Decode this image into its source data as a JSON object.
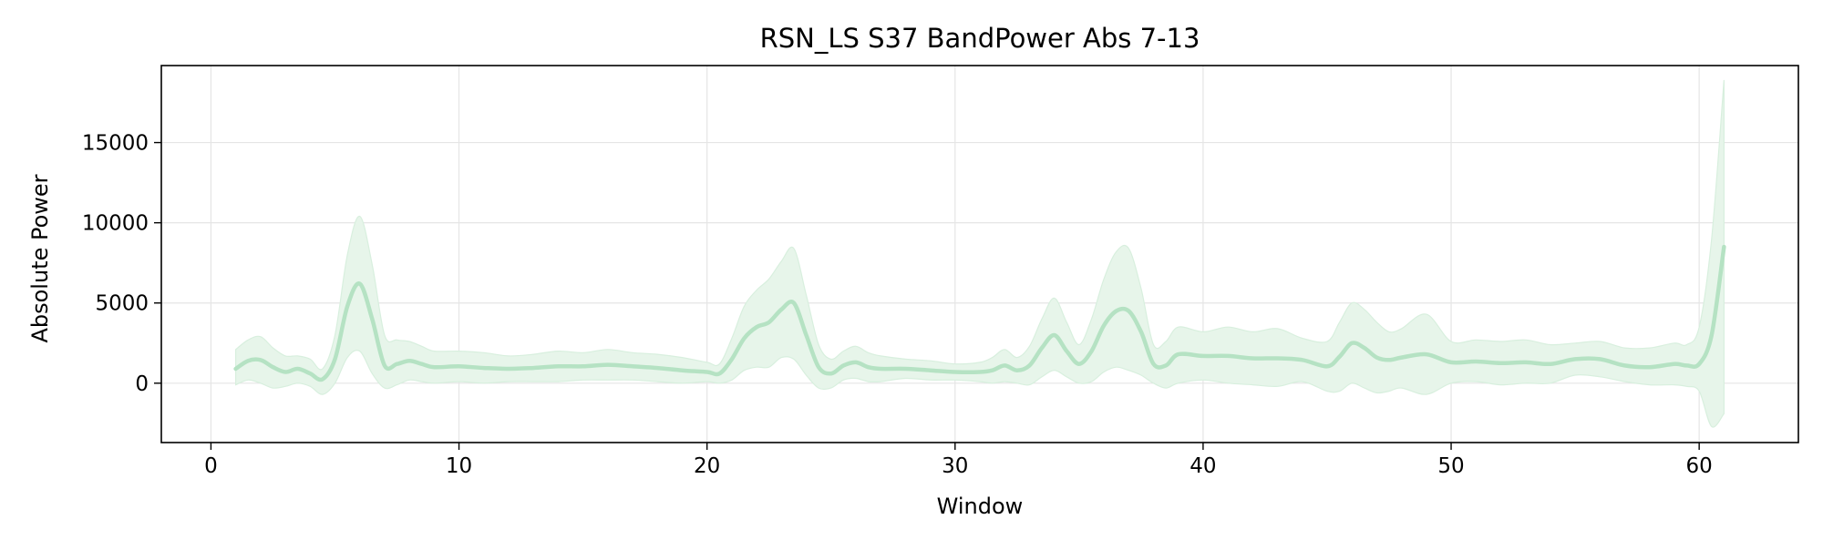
{
  "chart_data": {
    "type": "line",
    "title": "RSN_LS S37 BandPower Abs 7-13",
    "xlabel": "Window",
    "ylabel": "Absolute Power",
    "xlim": [
      -2,
      64
    ],
    "ylim": [
      -3700,
      19800
    ],
    "xticks": [
      0,
      10,
      20,
      30,
      40,
      50,
      60
    ],
    "yticks": [
      0,
      5000,
      10000,
      15000
    ],
    "grid": true,
    "legend": "none",
    "colors": {
      "line": "#b5e2c3",
      "band": "#e7f5ea",
      "band_edge": "#d8efde",
      "grid": "#e5e5e5"
    },
    "series": [
      {
        "x": [
          1,
          1.5,
          2,
          2.5,
          3,
          3.5,
          4,
          4.5,
          5,
          5.5,
          6,
          6.5,
          7,
          7.5,
          8,
          8.5,
          9,
          10,
          11,
          12,
          13,
          14,
          15,
          16,
          17,
          18,
          19,
          20,
          20.5,
          21,
          21.5,
          22,
          22.5,
          23,
          23.5,
          24,
          24.5,
          25,
          25.5,
          26,
          26.5,
          27,
          28,
          29,
          30,
          31,
          31.5,
          32,
          32.5,
          33,
          33.5,
          34,
          34.5,
          35,
          35.5,
          36,
          36.5,
          37,
          37.5,
          38,
          38.5,
          39,
          40,
          41,
          42,
          43,
          44,
          45,
          45.5,
          46,
          46.5,
          47,
          47.5,
          48,
          49,
          50,
          51,
          52,
          53,
          54,
          55,
          56,
          57,
          58,
          59,
          59.5,
          60,
          60.5,
          61
        ],
        "values": [
          900,
          1400,
          1450,
          1000,
          700,
          900,
          600,
          250,
          1500,
          4800,
          6200,
          4000,
          1100,
          1200,
          1400,
          1200,
          1000,
          1050,
          950,
          900,
          950,
          1050,
          1050,
          1150,
          1050,
          950,
          800,
          700,
          600,
          1500,
          2800,
          3500,
          3800,
          4600,
          5000,
          3000,
          1000,
          600,
          1100,
          1300,
          1000,
          900,
          900,
          800,
          700,
          700,
          800,
          1100,
          800,
          1100,
          2200,
          3000,
          2000,
          1200,
          2000,
          3600,
          4500,
          4500,
          3200,
          1200,
          1100,
          1800,
          1700,
          1700,
          1550,
          1550,
          1450,
          1050,
          1650,
          2500,
          2200,
          1600,
          1450,
          1600,
          1800,
          1300,
          1350,
          1250,
          1300,
          1200,
          1500,
          1500,
          1100,
          1000,
          1200,
          1100,
          1200,
          3000,
          8500
        ],
        "upper": [
          2100,
          2700,
          2900,
          2200,
          1700,
          1700,
          1500,
          900,
          3000,
          8000,
          10400,
          7400,
          3000,
          2700,
          2600,
          2300,
          2000,
          2000,
          1900,
          1700,
          1800,
          2000,
          1900,
          2100,
          1900,
          1800,
          1600,
          1300,
          1200,
          2800,
          4800,
          5800,
          6500,
          7600,
          8400,
          5500,
          2400,
          1500,
          2000,
          2300,
          1900,
          1700,
          1500,
          1400,
          1200,
          1300,
          1600,
          2100,
          1600,
          2300,
          4000,
          5300,
          3800,
          2400,
          4000,
          6500,
          8200,
          8400,
          5900,
          2400,
          2600,
          3500,
          3200,
          3500,
          3200,
          3400,
          2800,
          2600,
          3800,
          5000,
          4600,
          3800,
          3200,
          3400,
          4300,
          2600,
          2700,
          2600,
          2700,
          2400,
          2500,
          2600,
          2200,
          2200,
          2500,
          2400,
          3500,
          9000,
          18900
        ],
        "lower": [
          -100,
          200,
          0,
          -300,
          -200,
          0,
          -200,
          -700,
          0,
          1600,
          2000,
          600,
          -300,
          -100,
          200,
          100,
          0,
          100,
          0,
          100,
          100,
          100,
          200,
          200,
          200,
          100,
          0,
          100,
          0,
          200,
          800,
          1000,
          1000,
          1600,
          1500,
          500,
          -300,
          -300,
          200,
          300,
          100,
          100,
          300,
          200,
          200,
          100,
          0,
          100,
          0,
          -100,
          400,
          800,
          400,
          0,
          100,
          700,
          1000,
          800,
          500,
          0,
          -300,
          0,
          200,
          0,
          -100,
          -200,
          100,
          -500,
          -500,
          0,
          -300,
          -600,
          -500,
          -300,
          -700,
          0,
          100,
          -100,
          0,
          0,
          500,
          400,
          100,
          -100,
          -100,
          -200,
          -500,
          -2700,
          -1900
        ]
      }
    ]
  }
}
